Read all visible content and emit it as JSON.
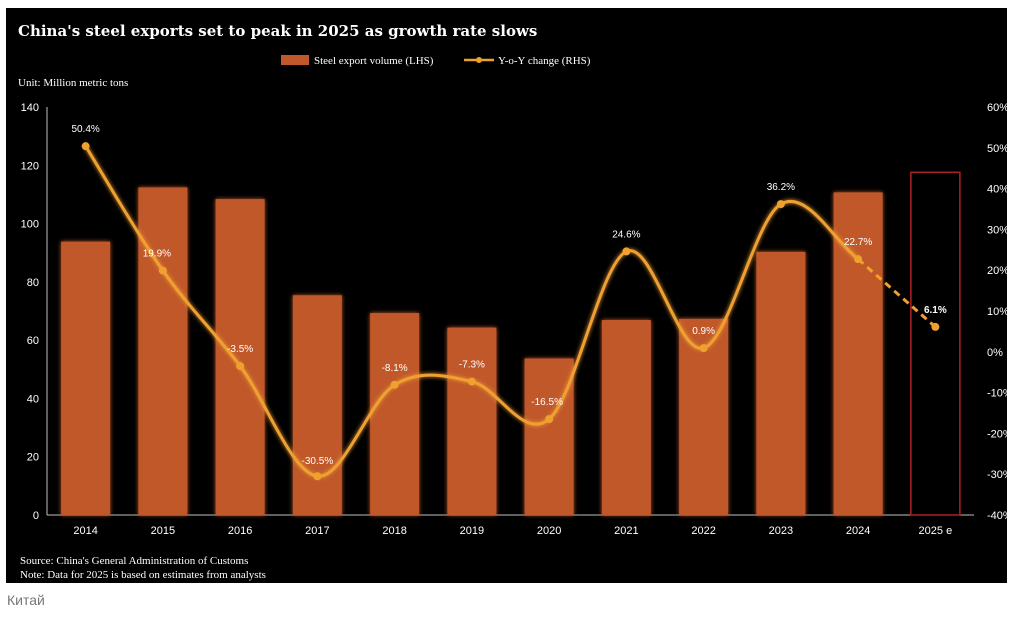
{
  "title": "China's steel exports set to peak in 2025 as growth rate slows",
  "caption": "Китай",
  "chart_data": {
    "type": "bar+line",
    "unit_label": "Unit: Million metric tons",
    "categories": [
      "2014",
      "2015",
      "2016",
      "2017",
      "2018",
      "2019",
      "2020",
      "2021",
      "2022",
      "2023",
      "2024",
      "2025 e"
    ],
    "series": [
      {
        "name": "Steel export volume (LHS)",
        "type": "bar",
        "axis": "left",
        "values": [
          93.8,
          112.4,
          108.4,
          75.4,
          69.3,
          64.3,
          53.7,
          66.9,
          67.3,
          90.3,
          110.7,
          117.6
        ]
      },
      {
        "name": "Y-o-Y change  (RHS)",
        "type": "line",
        "axis": "right",
        "values": [
          50.4,
          19.9,
          -3.5,
          -30.5,
          -8.1,
          -7.3,
          -16.5,
          24.6,
          0.9,
          36.2,
          22.7,
          6.1
        ],
        "labels": [
          "50.4%",
          "19.9%",
          "-3.5%",
          "-30.5%",
          "-8.1%",
          "-7.3%",
          "-16.5%",
          "24.6%",
          "0.9%",
          "36.2%",
          "22.7%",
          "6.1%"
        ]
      }
    ],
    "estimated_category": "2025 e",
    "y_left": {
      "min": 0,
      "max": 140,
      "ticks": [
        "0",
        "20",
        "40",
        "60",
        "80",
        "100",
        "120",
        "140"
      ]
    },
    "y_right": {
      "min": -40,
      "max": 60,
      "ticks": [
        "-40%",
        "-30%",
        "-20%",
        "-10%",
        "0%",
        "10%",
        "20%",
        "30%",
        "40%",
        "50%",
        "60%"
      ]
    },
    "colors": {
      "bar": "#C0582C",
      "line": "#F0A030",
      "estimate_outline": "#B02020",
      "background": "#000000",
      "text": "#FFFFFF"
    },
    "legend_position": "top-center",
    "source": "Source: China's General Administration of Customs",
    "note": "Note: Data for 2025 is based on estimates from analysts"
  }
}
